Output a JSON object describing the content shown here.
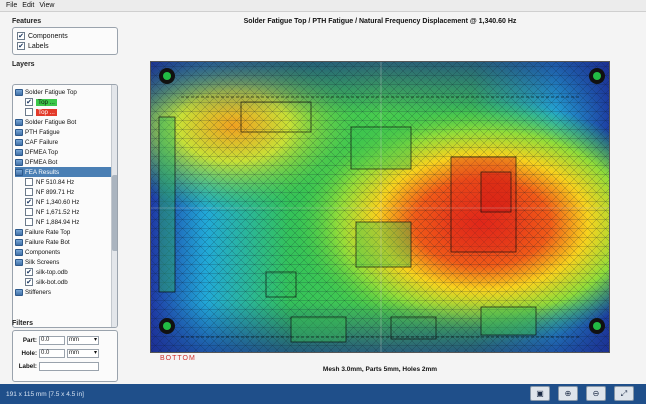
{
  "menubar": {
    "items": [
      "File",
      "Edit",
      "View"
    ]
  },
  "features": {
    "title": "Features",
    "items": [
      {
        "label": "Components",
        "checked": true
      },
      {
        "label": "Labels",
        "checked": true
      }
    ]
  },
  "layers": {
    "title": "Layers",
    "items": [
      {
        "label": "Solder Fatigue Top",
        "indent": 0,
        "type": "folder"
      },
      {
        "label": "Top ...",
        "indent": 1,
        "type": "check",
        "checked": true,
        "style": "green"
      },
      {
        "label": "Top ...",
        "indent": 1,
        "type": "check",
        "checked": false,
        "style": "red"
      },
      {
        "label": "Solder Fatigue Bot",
        "indent": 0,
        "type": "folder"
      },
      {
        "label": "PTH Fatigue",
        "indent": 0,
        "type": "folder"
      },
      {
        "label": "CAF Failure",
        "indent": 0,
        "type": "folder"
      },
      {
        "label": "DFMEA Top",
        "indent": 0,
        "type": "folder"
      },
      {
        "label": "DFMEA Bot",
        "indent": 0,
        "type": "folder"
      },
      {
        "label": "FEA Results",
        "indent": 0,
        "type": "folder",
        "selected": true
      },
      {
        "label": "NF 510.84 Hz",
        "indent": 1,
        "type": "check",
        "checked": false
      },
      {
        "label": "NF 899.71 Hz",
        "indent": 1,
        "type": "check",
        "checked": false
      },
      {
        "label": "NF 1,340.60 Hz",
        "indent": 1,
        "type": "check",
        "checked": true
      },
      {
        "label": "NF 1,671.52 Hz",
        "indent": 1,
        "type": "check",
        "checked": false
      },
      {
        "label": "NF 1,884.94 Hz",
        "indent": 1,
        "type": "check",
        "checked": false
      },
      {
        "label": "Failure Rate Top",
        "indent": 0,
        "type": "folder"
      },
      {
        "label": "Failure Rate Bot",
        "indent": 0,
        "type": "folder"
      },
      {
        "label": "Components",
        "indent": 0,
        "type": "folder"
      },
      {
        "label": "Silk Screens",
        "indent": 0,
        "type": "folder"
      },
      {
        "label": "silk-top.odb",
        "indent": 1,
        "type": "check",
        "checked": true
      },
      {
        "label": "silk-bot.odb",
        "indent": 1,
        "type": "check",
        "checked": true
      },
      {
        "label": "Stiffeners",
        "indent": 0,
        "type": "folder"
      }
    ]
  },
  "filters": {
    "title": "Filters",
    "part_label": "Part:",
    "part_value": "0.0",
    "part_unit": "mm",
    "hole_label": "Hole:",
    "hole_value": "0.0",
    "hole_unit": "mm",
    "label_label": "Label:",
    "label_value": ""
  },
  "plot": {
    "title": "Solder Fatigue Top / PTH Fatigue / Natural Frequency Displacement @ 1,340.60 Hz",
    "caption": "Mesh 3.0mm, Parts 5mm, Holes 2mm",
    "side_label": "BOTTOM"
  },
  "status": {
    "text": "191 x 115 mm [7.5 x 4.5 in]"
  },
  "toolbar": {
    "icons": [
      "camera-icon",
      "zoom-in-icon",
      "zoom-out-icon",
      "fit-icon"
    ]
  }
}
